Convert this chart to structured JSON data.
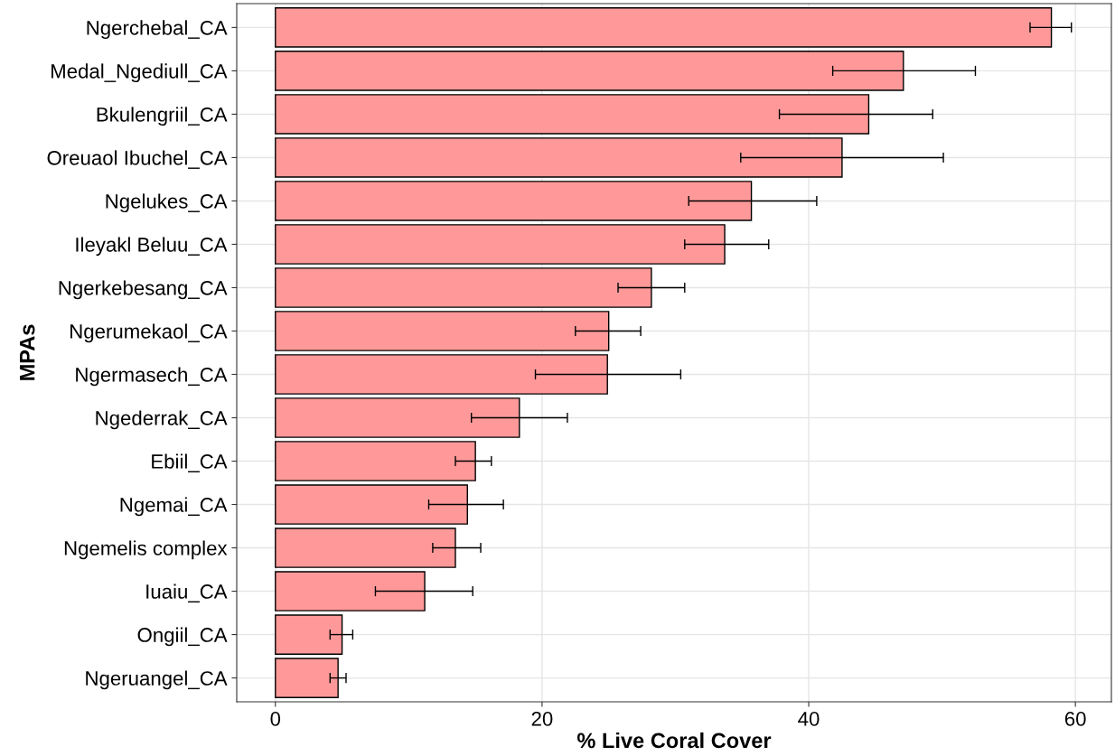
{
  "chart_data": {
    "type": "bar",
    "orientation": "horizontal",
    "xlabel": "% Live Coral Cover",
    "ylabel": "MPAs",
    "categories": [
      "Ngerchebal_CA",
      "Medal_Ngediull_CA",
      "Bkulengriil_CA",
      "Oreuaol Ibuchel_CA",
      "Ngelukes_CA",
      "Ileyakl Beluu_CA",
      "Ngerkebesang_CA",
      "Ngerumekaol_CA",
      "Ngermasech_CA",
      "Ngederrak_CA",
      "Ebiil_CA",
      "Ngemai_CA",
      "Ngemelis complex",
      "Iuaiu_CA",
      "Ongiil_CA",
      "Ngeruangel_CA"
    ],
    "values": [
      58.2,
      47.1,
      44.5,
      42.5,
      35.7,
      33.7,
      28.2,
      25.0,
      24.9,
      18.3,
      15.0,
      14.4,
      13.5,
      11.2,
      5.0,
      4.7
    ],
    "errors": [
      [
        56.6,
        59.7
      ],
      [
        41.8,
        52.5
      ],
      [
        37.8,
        49.3
      ],
      [
        34.9,
        50.1
      ],
      [
        31.0,
        40.6
      ],
      [
        30.7,
        37.0
      ],
      [
        25.7,
        30.7
      ],
      [
        22.5,
        27.4
      ],
      [
        19.5,
        30.4
      ],
      [
        14.7,
        21.9
      ],
      [
        13.5,
        16.2
      ],
      [
        11.5,
        17.1
      ],
      [
        11.8,
        15.4
      ],
      [
        7.5,
        14.8
      ],
      [
        4.1,
        5.8
      ],
      [
        4.1,
        5.3
      ]
    ],
    "color": "#ff9999",
    "xlim": [
      -2.9,
      62.7
    ],
    "xticks": [
      0,
      20,
      40,
      60
    ],
    "grid": true,
    "legend": false
  }
}
